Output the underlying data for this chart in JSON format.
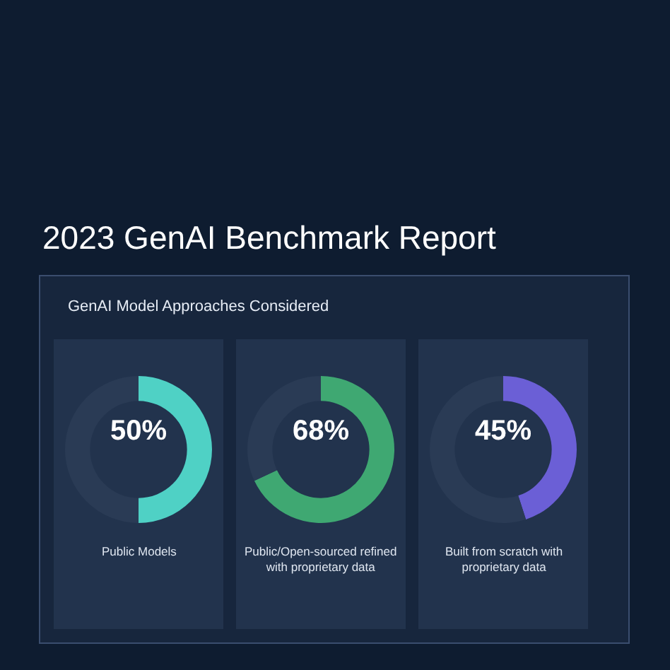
{
  "chart_data": [
    {
      "type": "donut",
      "title": "2023 GenAI Benchmark Report",
      "subtitle": "GenAI Model Approaches Considered",
      "categories": [
        null,
        null
      ],
      "values": [
        50,
        50
      ],
      "colors": [
        "#4fd1c5",
        "#2a3b55"
      ],
      "value_labels": [
        "50%",
        null
      ],
      "annotations": [
        "Public Models"
      ]
    },
    {
      "type": "donut",
      "categories": [
        null,
        null
      ],
      "values": [
        68,
        32
      ],
      "colors": [
        "#3fa872",
        "#2a3b55"
      ],
      "value_labels": [
        "68%",
        null
      ],
      "annotations": [
        "Public/Open-sourced refined with proprietary data"
      ]
    },
    {
      "type": "donut",
      "categories": [
        null,
        null
      ],
      "values": [
        45,
        55
      ],
      "colors": [
        "#6b5fd6",
        "#2a3b55"
      ],
      "value_labels": [
        "45%",
        null
      ],
      "annotations": [
        "Built from scratch with proprietary data"
      ]
    }
  ]
}
